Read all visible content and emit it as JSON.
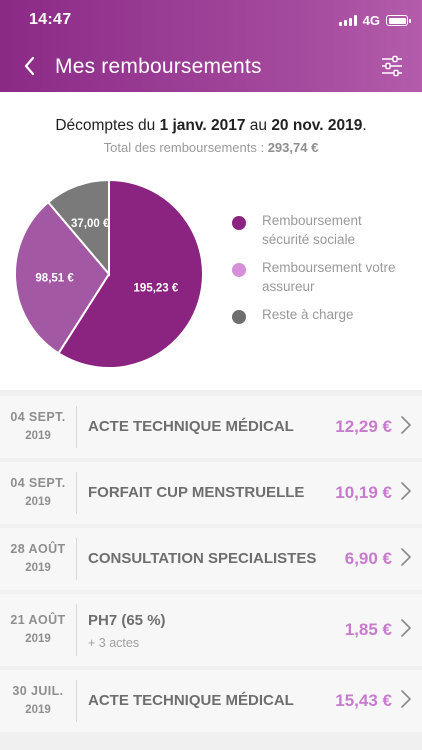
{
  "status_bar": {
    "time": "14:47",
    "network": "4G"
  },
  "header": {
    "title": "Mes remboursements"
  },
  "summary": {
    "prefix": "Décomptes du ",
    "date_from": "1 janv. 2017",
    "middle": " au ",
    "date_to": "20 nov. 2019",
    "suffix": ".",
    "total_label": "Total des remboursements : ",
    "total_value": "293,74 €"
  },
  "chart_data": {
    "type": "pie",
    "slices": [
      {
        "name": "Remboursement sécurité sociale",
        "value": 195.23,
        "label": "195,23 €",
        "color": "#8b2480"
      },
      {
        "name": "Remboursement votre assureur",
        "value": 98.51,
        "label": "98,51 €",
        "color": "#a258a3"
      },
      {
        "name": "Reste à charge",
        "value": 37.0,
        "label": "37,00 €",
        "color": "#7a7a7a"
      }
    ],
    "legend_placement": "right"
  },
  "legend": [
    {
      "line1": "Remboursement",
      "line2": "sécurité sociale",
      "color": "#8b2480"
    },
    {
      "line1": "Remboursement votre",
      "line2": "assureur",
      "color": "#d68fd8"
    },
    {
      "line1": "Reste à charge",
      "line2": "",
      "color": "#6e6e6e"
    }
  ],
  "rows": [
    {
      "date_day": "04 SEPT.",
      "date_year": "2019",
      "label": "ACTE TECHNIQUE MÉDICAL",
      "sub": "",
      "amount": "12,29 €"
    },
    {
      "date_day": "04 SEPT.",
      "date_year": "2019",
      "label": "FORFAIT CUP MENSTRUELLE",
      "sub": "",
      "amount": "10,19 €"
    },
    {
      "date_day": "28 AOÛT",
      "date_year": "2019",
      "label": "CONSULTATION SPECIALISTES",
      "sub": "",
      "amount": "6,90 €"
    },
    {
      "date_day": "21 AOÛT",
      "date_year": "2019",
      "label": "PH7 (65 %)",
      "sub": "+ 3 actes",
      "amount": "1,85 €"
    },
    {
      "date_day": "30 JUIL.",
      "date_year": "2019",
      "label": "ACTE TECHNIQUE MÉDICAL",
      "sub": "",
      "amount": "15,43 €"
    }
  ]
}
